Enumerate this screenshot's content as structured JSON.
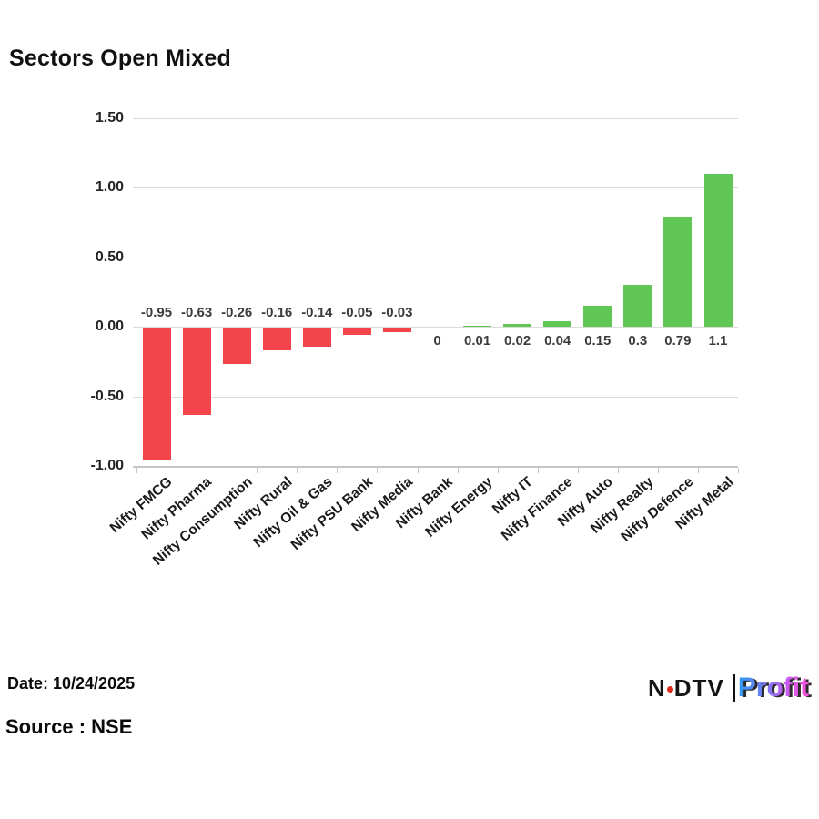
{
  "title": "Sectors Open Mixed",
  "chart_data": {
    "type": "bar",
    "title": "Sectors Open Mixed",
    "categories": [
      "Nifty FMCG",
      "Nifty Pharma",
      "Nifty Consumption",
      "Nifty Rural",
      "Nifty Oil & Gas",
      "Nifty PSU Bank",
      "Nifty Media",
      "Nifty Bank",
      "Nifty Energy",
      "Nifty IT",
      "Nifty Finance",
      "Nifty Auto",
      "Nifty Realty",
      "Nifty Defence",
      "Nifty Metal"
    ],
    "values": [
      -0.95,
      -0.63,
      -0.26,
      -0.16,
      -0.14,
      -0.05,
      -0.03,
      0,
      0.01,
      0.02,
      0.04,
      0.15,
      0.3,
      0.79,
      1.1
    ],
    "value_labels": [
      "-0.95",
      "-0.63",
      "-0.26",
      "-0.16",
      "-0.14",
      "-0.05",
      "-0.03",
      "0",
      "0.01",
      "0.02",
      "0.04",
      "0.15",
      "0.3",
      "0.79",
      "1.1"
    ],
    "xlabel": "",
    "ylabel": "",
    "ylim": [
      -1.0,
      1.5
    ],
    "yticks": [
      1.5,
      1.0,
      0.5,
      0.0,
      -0.5
    ],
    "ytick_labels": [
      "1.50",
      "1.00",
      "0.50",
      "0.00",
      "-0.50"
    ],
    "axis_tick_value": -1.0,
    "axis_tick_label": "-1.00",
    "grid": true,
    "legend": false,
    "colors": {
      "positive": "#61C754",
      "negative": "#F3444B",
      "grid": "#DBDBDB",
      "axis": "#C6C6C6",
      "value_label": "#3C3C3C",
      "tick_label": "#1B1B1B"
    }
  },
  "footer": {
    "date": "Date: 10/24/2025",
    "source": "Source : NSE"
  },
  "logo": {
    "ndtv_n": "N",
    "ndtv_dtv": "DTV",
    "profit": "Profit",
    "dot_color": "#DD2A1B"
  }
}
